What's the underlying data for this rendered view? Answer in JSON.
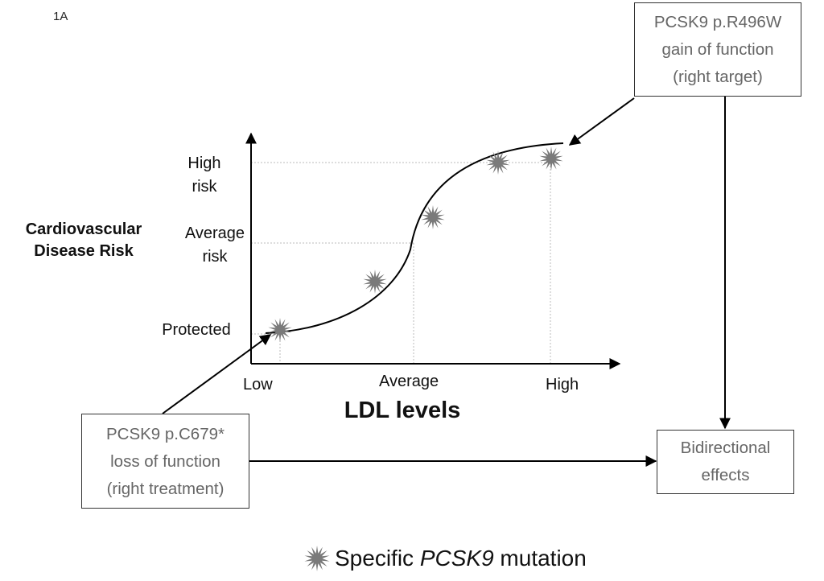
{
  "panel_label": "1A",
  "y_axis_title": [
    "Cardiovascular",
    "Disease Risk"
  ],
  "y_ticks": {
    "high": [
      "High",
      "risk"
    ],
    "average": [
      "Average",
      "risk"
    ],
    "protected": "Protected"
  },
  "x_ticks": {
    "low": "Low",
    "average": "Average",
    "high": "High"
  },
  "x_axis_title": "LDL levels",
  "boxes": {
    "gain": [
      "PCSK9 p.R496W",
      "gain of function",
      "(right target)"
    ],
    "loss": [
      "PCSK9 p.C679*",
      "loss of function",
      "(right treatment)"
    ],
    "bidirectional": [
      "Bidirectional",
      "effects"
    ]
  },
  "legend": {
    "prefix": "Specific ",
    "gene": "PCSK9",
    "suffix": " mutation"
  },
  "colors": {
    "mutation_star": "#7a7a7a",
    "box_text": "#666666",
    "curve": "#000000",
    "guide": "#bbbbbb"
  }
}
